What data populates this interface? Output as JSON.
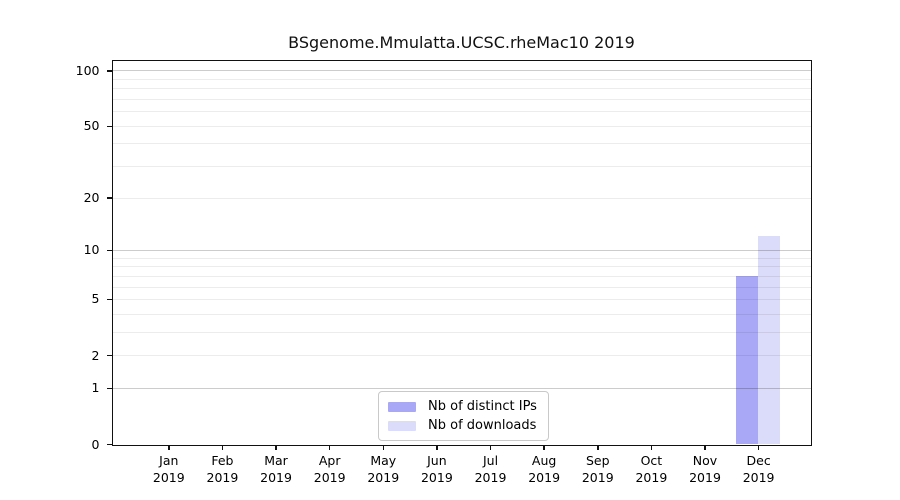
{
  "chart_data": {
    "type": "bar",
    "title": "BSgenome.Mmulatta.UCSC.rheMac10 2019",
    "x_categories": [
      "Jan",
      "Feb",
      "Mar",
      "Apr",
      "May",
      "Jun",
      "Jul",
      "Aug",
      "Sep",
      "Oct",
      "Nov",
      "Dec"
    ],
    "x_year_label": "2019",
    "series": [
      {
        "name": "Nb of distinct IPs",
        "color": "#a8a8f7",
        "values": [
          0,
          0,
          0,
          0,
          0,
          0,
          0,
          0,
          0,
          0,
          0,
          7
        ]
      },
      {
        "name": "Nb of downloads",
        "color": "#dbdbfa",
        "values": [
          0,
          0,
          0,
          0,
          0,
          0,
          0,
          0,
          0,
          0,
          0,
          12
        ]
      }
    ],
    "y_scale": "log1p",
    "ylim": [
      0,
      112
    ],
    "y_ticks": [
      0,
      1,
      2,
      5,
      10,
      20,
      50,
      100
    ],
    "y_major_grid": [
      1,
      10,
      100
    ],
    "y_minor_grid": [
      2,
      3,
      4,
      5,
      6,
      7,
      8,
      9,
      20,
      30,
      40,
      50,
      60,
      70,
      80,
      90
    ],
    "grid": "on",
    "legend": {
      "position": "bottom-center",
      "entries": [
        "Nb of distinct IPs",
        "Nb of downloads"
      ]
    },
    "colors": {
      "distinct_ips_bar": "#a8a8f7",
      "downloads_bar": "#dbdbfa",
      "axis": "#111111",
      "major_grid": "#cccccc",
      "minor_grid": "#ececec",
      "background": "#ffffff"
    }
  }
}
